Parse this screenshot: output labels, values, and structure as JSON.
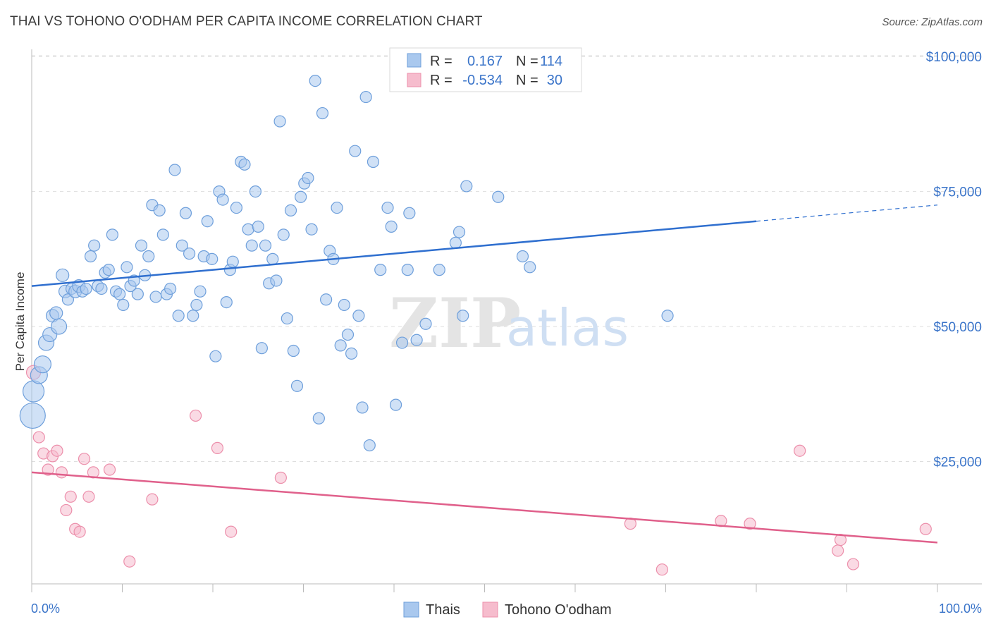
{
  "header": {
    "title": "THAI VS TOHONO O'ODHAM PER CAPITA INCOME CORRELATION CHART",
    "source": "Source: ZipAtlas.com"
  },
  "watermark": {
    "part1": "ZIP",
    "part2": "atlas"
  },
  "legend": {
    "rows": [
      {
        "r_label": "R =",
        "r_value": "0.167",
        "n_label": "N =",
        "n_value": "114"
      },
      {
        "r_label": "R =",
        "r_value": "-0.534",
        "n_label": "N =",
        "n_value": "30"
      }
    ]
  },
  "bottom_legend": {
    "series1": "Thais",
    "series2": "Tohono O'odham"
  },
  "colors": {
    "thais_fill": "#a9c8ee",
    "thais_stroke": "#6e9fdb",
    "thais_line": "#2f6fcf",
    "tohono_fill": "#f6bccd",
    "tohono_stroke": "#ec8fab",
    "tohono_line": "#e0608b",
    "axis_text": "#3a74c9",
    "grid": "#dedede"
  },
  "chart_data": {
    "type": "scatter",
    "title": "THAI VS TOHONO O'ODHAM PER CAPITA INCOME CORRELATION CHART",
    "xlabel": "",
    "ylabel": "Per Capita Income",
    "xlim": [
      0,
      100
    ],
    "ylim": [
      0,
      102000
    ],
    "x_tick_labels": [
      "0.0%",
      "100.0%"
    ],
    "y_ticks": [
      25000,
      50000,
      75000,
      100000
    ],
    "y_tick_labels": [
      "$25,000",
      "$50,000",
      "$75,000",
      "$100,000"
    ],
    "grid": true,
    "legend_position": "top-center",
    "series": [
      {
        "name": "Thais",
        "trend": {
          "x0": 0,
          "y0": 57500,
          "x1": 80,
          "y1": 69500,
          "dashed_to_x": 100,
          "dashed_to_y": 72500
        },
        "points": [
          [
            0.1,
            33500,
            18
          ],
          [
            0.2,
            38000,
            15
          ],
          [
            0.8,
            41000,
            12
          ],
          [
            1.2,
            43000,
            12
          ],
          [
            1.6,
            47000,
            11
          ],
          [
            2.0,
            48500,
            10
          ],
          [
            2.3,
            52000,
            9
          ],
          [
            2.7,
            52500,
            9
          ],
          [
            3.0,
            50000,
            11
          ],
          [
            3.4,
            59500,
            9
          ],
          [
            3.7,
            56500,
            9
          ],
          [
            4.0,
            55000,
            8
          ],
          [
            4.4,
            57000,
            8
          ],
          [
            4.8,
            56500,
            9
          ],
          [
            5.2,
            57500,
            9
          ],
          [
            5.6,
            56500,
            8
          ],
          [
            6.0,
            57000,
            8
          ],
          [
            6.5,
            63000,
            8
          ],
          [
            6.9,
            65000,
            8
          ],
          [
            7.3,
            57500,
            8
          ],
          [
            7.7,
            57000,
            8
          ],
          [
            8.1,
            60000,
            8
          ],
          [
            8.5,
            60500,
            8
          ],
          [
            8.9,
            67000,
            8
          ],
          [
            9.3,
            56500,
            8
          ],
          [
            9.7,
            56000,
            8
          ],
          [
            10.1,
            54000,
            8
          ],
          [
            10.5,
            61000,
            8
          ],
          [
            10.9,
            57500,
            8
          ],
          [
            11.3,
            58500,
            8
          ],
          [
            11.7,
            56000,
            8
          ],
          [
            12.1,
            65000,
            8
          ],
          [
            12.5,
            59500,
            8
          ],
          [
            12.9,
            63000,
            8
          ],
          [
            13.3,
            72500,
            8
          ],
          [
            13.7,
            55500,
            8
          ],
          [
            14.1,
            71500,
            8
          ],
          [
            14.5,
            67000,
            8
          ],
          [
            14.9,
            56000,
            8
          ],
          [
            15.3,
            57000,
            8
          ],
          [
            15.8,
            79000,
            8
          ],
          [
            16.2,
            52000,
            8
          ],
          [
            16.6,
            65000,
            8
          ],
          [
            17.0,
            71000,
            8
          ],
          [
            17.4,
            63500,
            8
          ],
          [
            17.8,
            52000,
            8
          ],
          [
            18.2,
            54000,
            8
          ],
          [
            18.6,
            56500,
            8
          ],
          [
            19.0,
            63000,
            8
          ],
          [
            19.4,
            69500,
            8
          ],
          [
            19.9,
            62500,
            8
          ],
          [
            20.3,
            44500,
            8
          ],
          [
            20.7,
            75000,
            8
          ],
          [
            21.1,
            73500,
            8
          ],
          [
            21.5,
            54500,
            8
          ],
          [
            21.9,
            60500,
            8
          ],
          [
            22.2,
            62000,
            8
          ],
          [
            22.6,
            72000,
            8
          ],
          [
            23.1,
            80500,
            8
          ],
          [
            23.5,
            80000,
            8
          ],
          [
            23.9,
            68000,
            8
          ],
          [
            24.3,
            65000,
            8
          ],
          [
            24.7,
            75000,
            8
          ],
          [
            25.0,
            68500,
            8
          ],
          [
            25.4,
            46000,
            8
          ],
          [
            25.8,
            65000,
            8
          ],
          [
            26.2,
            58000,
            8
          ],
          [
            26.6,
            62500,
            8
          ],
          [
            27.0,
            58500,
            8
          ],
          [
            27.4,
            88000,
            8
          ],
          [
            27.8,
            67000,
            8
          ],
          [
            28.2,
            51500,
            8
          ],
          [
            28.6,
            71500,
            8
          ],
          [
            28.9,
            45500,
            8
          ],
          [
            29.3,
            39000,
            8
          ],
          [
            29.7,
            74000,
            8
          ],
          [
            30.1,
            76500,
            8
          ],
          [
            30.5,
            77500,
            8
          ],
          [
            30.9,
            68000,
            8
          ],
          [
            31.3,
            95500,
            8
          ],
          [
            31.7,
            33000,
            8
          ],
          [
            32.1,
            89500,
            8
          ],
          [
            32.5,
            55000,
            8
          ],
          [
            32.9,
            64000,
            8
          ],
          [
            33.3,
            62500,
            8
          ],
          [
            33.7,
            72000,
            8
          ],
          [
            34.1,
            46500,
            8
          ],
          [
            34.5,
            54000,
            8
          ],
          [
            34.9,
            48500,
            8
          ],
          [
            35.3,
            45000,
            8
          ],
          [
            35.7,
            82500,
            8
          ],
          [
            36.1,
            52000,
            8
          ],
          [
            36.5,
            35000,
            8
          ],
          [
            36.9,
            92500,
            8
          ],
          [
            37.3,
            28000,
            8
          ],
          [
            37.7,
            80500,
            8
          ],
          [
            38.5,
            60500,
            8
          ],
          [
            39.3,
            72000,
            8
          ],
          [
            39.7,
            68500,
            8
          ],
          [
            40.2,
            35500,
            8
          ],
          [
            40.9,
            47000,
            8
          ],
          [
            41.5,
            60500,
            8
          ],
          [
            41.7,
            71000,
            8
          ],
          [
            42.5,
            47500,
            8
          ],
          [
            43.5,
            50500,
            8
          ],
          [
            45.0,
            60500,
            8
          ],
          [
            46.8,
            65500,
            8
          ],
          [
            47.2,
            67500,
            8
          ],
          [
            47.6,
            52000,
            8
          ],
          [
            48.0,
            76000,
            8
          ],
          [
            51.5,
            74000,
            8
          ],
          [
            54.2,
            63000,
            8
          ],
          [
            55.0,
            61000,
            8
          ],
          [
            70.2,
            52000,
            8
          ]
        ]
      },
      {
        "name": "Tohono O'odham",
        "trend": {
          "x0": 0,
          "y0": 23000,
          "x1": 100,
          "y1": 10000
        },
        "points": [
          [
            0.2,
            41500,
            10
          ],
          [
            0.8,
            29500,
            8
          ],
          [
            1.3,
            26500,
            8
          ],
          [
            1.8,
            23500,
            8
          ],
          [
            2.3,
            26000,
            8
          ],
          [
            2.8,
            27000,
            8
          ],
          [
            3.3,
            23000,
            8
          ],
          [
            3.8,
            16000,
            8
          ],
          [
            4.3,
            18500,
            8
          ],
          [
            4.8,
            12500,
            8
          ],
          [
            5.3,
            12000,
            8
          ],
          [
            5.8,
            25500,
            8
          ],
          [
            6.3,
            18500,
            8
          ],
          [
            6.8,
            23000,
            8
          ],
          [
            8.6,
            23500,
            8
          ],
          [
            10.8,
            6500,
            8
          ],
          [
            13.3,
            18000,
            8
          ],
          [
            18.1,
            33500,
            8
          ],
          [
            20.5,
            27500,
            8
          ],
          [
            22.0,
            12000,
            8
          ],
          [
            27.5,
            22000,
            8
          ],
          [
            66.1,
            13500,
            8
          ],
          [
            69.6,
            5000,
            8
          ],
          [
            76.1,
            14000,
            8
          ],
          [
            79.3,
            13500,
            8
          ],
          [
            84.8,
            27000,
            8
          ],
          [
            89.0,
            8500,
            8
          ],
          [
            89.3,
            10500,
            8
          ],
          [
            90.7,
            6000,
            8
          ],
          [
            98.7,
            12500,
            8
          ]
        ]
      }
    ]
  }
}
